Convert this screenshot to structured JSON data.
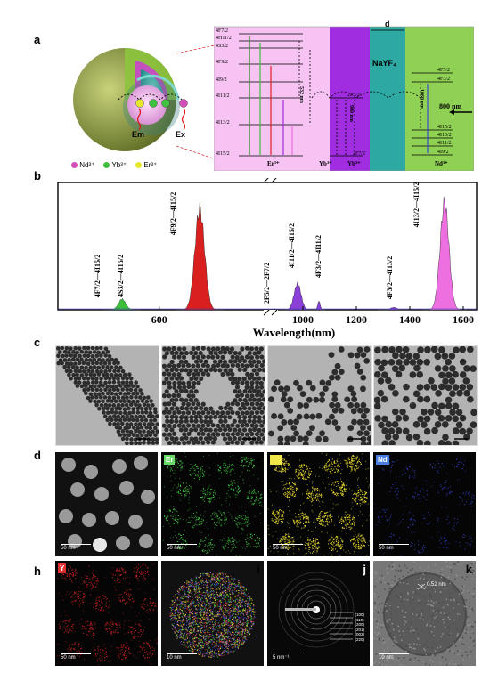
{
  "panels": {
    "a": "a",
    "b": "b",
    "c": "c",
    "d": "d",
    "h": "h"
  },
  "panel_a": {
    "sphere_labels": {
      "em": "Em",
      "ex": "Ex"
    },
    "ion_legend": [
      "Nd³⁺",
      "Yb³⁺",
      "Er³⁺"
    ],
    "ion_colors": {
      "nd": "#d44fb8",
      "yb": "#3fc13f",
      "er": "#e6e62a"
    },
    "er_levels": [
      "4F7/2",
      "4H11/2",
      "4S3/2",
      "4F9/2",
      "4I9/2",
      "4I11/2",
      "4I13/2",
      "4I15/2"
    ],
    "er_ion": "Er³⁺",
    "yb_ion_1": "Yb³⁺",
    "yb_ion_2": "Yb³⁺",
    "yb_levels": [
      "2F5/2",
      "2F7/2"
    ],
    "nd_ion": "Nd³⁺",
    "nd_levels": [
      "4F5/2",
      "4F3/2",
      "4I15/2",
      "4I13/2",
      "4I11/2",
      "4I9/2"
    ],
    "shell_label": "NaYF₄",
    "d_label": "d",
    "wl_532": "532 nm",
    "wl_980": "980 nm",
    "wl_1060": "1060 nm",
    "wl_800": "800 nm",
    "region_colors": {
      "er": "#f6c3f3",
      "yb": "#a02de0",
      "teal": "#2ea8a2",
      "nd": "#8fd154"
    }
  },
  "chart_data": {
    "type": "area",
    "xlabel": "Wavelength(nm)",
    "ylabel": "",
    "x_ticks": [
      600,
      1000,
      1200,
      1400,
      1600
    ],
    "axis_break": true,
    "series": [
      {
        "name": "",
        "color": "#3bbf3b",
        "peaks": [
          {
            "x": 545,
            "y": 0.09
          }
        ]
      },
      {
        "name": "",
        "color": "#d9201f",
        "peaks": [
          {
            "x": 660,
            "y": 0.85
          }
        ]
      },
      {
        "name": "",
        "color": "#8a3fd6",
        "peaks": [
          {
            "x": 980,
            "y": 0.22
          },
          {
            "x": 1060,
            "y": 0.07
          },
          {
            "x": 1340,
            "y": 0.02
          }
        ]
      },
      {
        "name": "",
        "color": "#ee6fe0",
        "peaks": [
          {
            "x": 1530,
            "y": 0.9
          }
        ]
      }
    ],
    "annotations": [
      "4F7/2—4I15/2",
      "4S3/2—4I15/2",
      "4F9/2—4I15/2",
      "2F5/2—2F7/2",
      "4I11/2—4I15/2",
      "4F3/2—4I11/2",
      "4F3/2—4I13/2",
      "4I13/2—4I15/2"
    ]
  },
  "panel_d": {
    "tags": {
      "e": "Er",
      "f": "Yb",
      "g": "Nd",
      "h": "Y"
    },
    "tag_colors": {
      "e": "#6ad96a",
      "f": "#f0e84a",
      "g": "#4a7ee0",
      "h": "#e03030"
    },
    "letters": {
      "e": "e",
      "f": "f",
      "g": "g",
      "i": "i",
      "j": "j",
      "k": "k"
    },
    "scale_50nm": "50 nm",
    "scale_5nm": "5 nm⁻¹",
    "scale_10nm": "10 nm",
    "lattice": "0.52 nm",
    "diffraction_rings": [
      "(100)",
      "(110)",
      "(200)",
      "(201)",
      "(002)",
      "(220)"
    ]
  }
}
